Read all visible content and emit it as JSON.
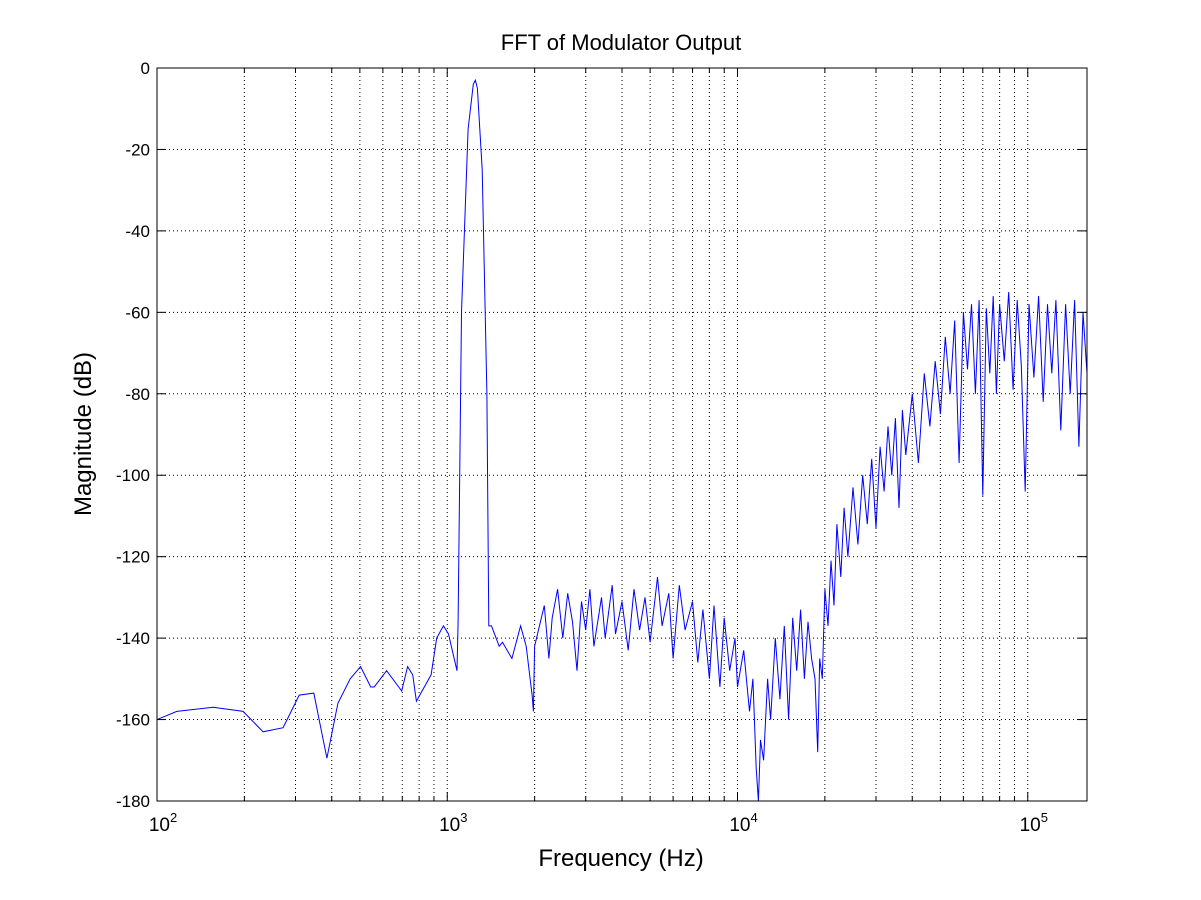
{
  "chart_data": {
    "type": "line",
    "title": "FFT of Modulator Output",
    "xlabel": "Frequency (Hz)",
    "ylabel": "Magnitude (dB)",
    "xscale": "log",
    "xlim": [
      100,
      160000
    ],
    "ylim": [
      -180,
      0
    ],
    "grid": true,
    "line_color": "#0000ff",
    "x_ticks": [
      100,
      1000,
      10000,
      100000
    ],
    "x_tick_labels": [
      {
        "base": "10",
        "exp": "2"
      },
      {
        "base": "10",
        "exp": "3"
      },
      {
        "base": "10",
        "exp": "4"
      },
      {
        "base": "10",
        "exp": "5"
      }
    ],
    "y_ticks": [
      0,
      -20,
      -40,
      -60,
      -80,
      -100,
      -120,
      -140,
      -160,
      -180
    ],
    "y_tick_labels": [
      "0",
      "-20",
      "-40",
      "-60",
      "-80",
      "-100",
      "-120",
      "-140",
      "-160",
      "-180"
    ],
    "series": [
      {
        "x": [
          100,
          117,
          156,
          198,
          232,
          272,
          309,
          347,
          385,
          420,
          463,
          503,
          545,
          560,
          618,
          697,
          730,
          760,
          783,
          880,
          920,
          970,
          1010,
          1080,
          1090,
          1120,
          1180,
          1230,
          1250,
          1270,
          1320,
          1370,
          1390,
          1397,
          1420,
          1510,
          1550,
          1670,
          1790,
          1870,
          1960,
          1980,
          2000,
          2160,
          2240,
          2300,
          2400,
          2500,
          2600,
          2700,
          2800,
          2900,
          3000,
          3100,
          3200,
          3400,
          3500,
          3700,
          3800,
          4000,
          4200,
          4400,
          4600,
          4800,
          5000,
          5300,
          5500,
          5800,
          6000,
          6300,
          6600,
          7000,
          7300,
          7600,
          8000,
          8300,
          8700,
          9000,
          9400,
          9800,
          10000,
          10500,
          11000,
          11300,
          11600,
          11800,
          12000,
          12300,
          12700,
          13000,
          13500,
          14000,
          14500,
          15000,
          15500,
          16000,
          16500,
          17000,
          17500,
          18000,
          18500,
          18900,
          19200,
          19600,
          20000,
          20500,
          21000,
          21500,
          22000,
          22700,
          23300,
          24000,
          25000,
          26000,
          27000,
          28000,
          29000,
          30000,
          31000,
          32000,
          33000,
          34000,
          35000,
          36000,
          37000,
          38000,
          40000,
          42000,
          44000,
          46000,
          48000,
          50000,
          52000,
          54000,
          56000,
          58000,
          60000,
          62000,
          64000,
          66000,
          68000,
          70000,
          72000,
          74000,
          76000,
          78000,
          80000,
          83000,
          86000,
          89000,
          92000,
          95000,
          98000,
          101000,
          105000,
          109000,
          113000,
          117000,
          121000,
          125000,
          130000,
          135000,
          140000,
          145000,
          150000,
          155000,
          160000
        ],
        "y": [
          -160,
          -158,
          -157,
          -158,
          -163,
          -162,
          -154,
          -153.5,
          -169.5,
          -156,
          -150,
          -147,
          -152,
          -152,
          -148,
          -153,
          -147,
          -149,
          -155.5,
          -149,
          -140,
          -137,
          -139,
          -148,
          -136,
          -60,
          -15,
          -4,
          -3,
          -5,
          -25,
          -80,
          -137,
          -137,
          -137,
          -142,
          -141,
          -145,
          -137,
          -142,
          -154,
          -158,
          -142,
          -132,
          -145,
          -135,
          -128,
          -140,
          -129,
          -136,
          -148,
          -131,
          -138,
          -128,
          -142,
          -130,
          -140,
          -127,
          -139,
          -131,
          -143,
          -128,
          -138,
          -130,
          -141,
          -125,
          -137,
          -129,
          -145,
          -127,
          -138,
          -131,
          -146,
          -133,
          -150,
          -132,
          -152,
          -135,
          -148,
          -140,
          -152,
          -143,
          -158,
          -150,
          -172,
          -180,
          -165,
          -170,
          -150,
          -160,
          -140,
          -155,
          -137,
          -160,
          -135,
          -148,
          -133,
          -150,
          -136,
          -145,
          -150,
          -168,
          -145,
          -150,
          -128,
          -137,
          -121,
          -132,
          -112,
          -125,
          -108,
          -120,
          -103,
          -117,
          -100,
          -112,
          -96,
          -113,
          -93,
          -104,
          -88,
          -100,
          -86,
          -108,
          -84,
          -95,
          -80,
          -97,
          -75,
          -88,
          -72,
          -85,
          -66,
          -80,
          -62,
          -97,
          -60,
          -74,
          -58,
          -80,
          -57,
          -105,
          -59,
          -75,
          -56,
          -80,
          -58,
          -72,
          -55,
          -79,
          -57,
          -73,
          -104,
          -58,
          -76,
          -56,
          -82,
          -58,
          -75,
          -57,
          -89,
          -58,
          -80,
          -57,
          -93,
          -60,
          -75
        ]
      }
    ]
  }
}
